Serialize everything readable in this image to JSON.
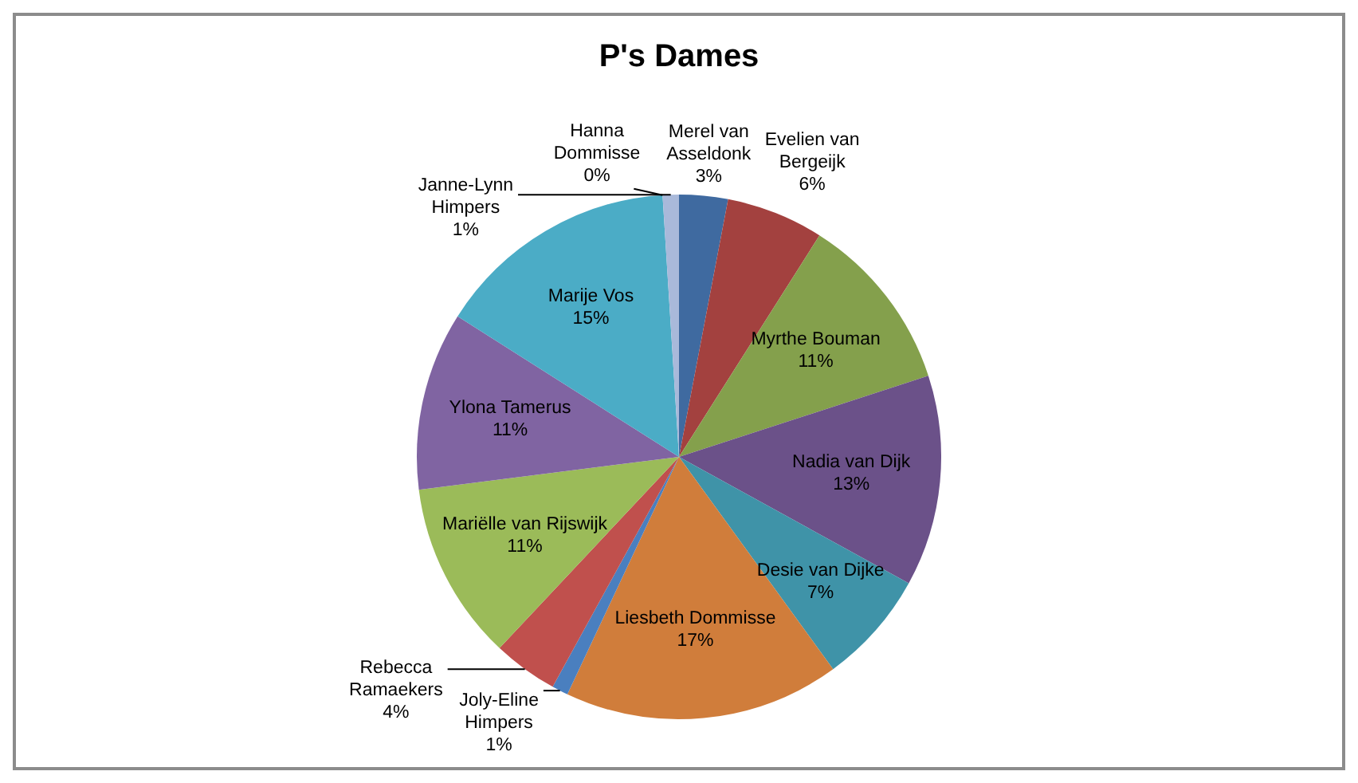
{
  "chart_data": {
    "type": "pie",
    "title": "P's Dames",
    "categories": [
      "Merel van Asseldonk",
      "Evelien van Bergeijk",
      "Myrthe Bouman",
      "Nadia van Dijk",
      "Desie van Dijke",
      "Liesbeth Dommisse",
      "Joly-Eline Himpers",
      "Rebecca Ramaekers",
      "Mariëlle van Rijswijk",
      "Ylona Tamerus",
      "Marije Vos",
      "Hanna Dommisse",
      "Janne-Lynn Himpers"
    ],
    "values": [
      3,
      6,
      11,
      13,
      7,
      17,
      1,
      4,
      11,
      11,
      15,
      0,
      1
    ],
    "value_labels": [
      "3%",
      "6%",
      "11%",
      "13%",
      "7%",
      "17%",
      "1%",
      "4%",
      "11%",
      "11%",
      "15%",
      "0%",
      "1%"
    ],
    "colors": [
      "#3f6aa0",
      "#a3413f",
      "#84a04c",
      "#6b5189",
      "#3f93a8",
      "#d07d3b",
      "#4a7fbf",
      "#c0504d",
      "#9bbb59",
      "#8064a2",
      "#4bacc6",
      "#f79646",
      "#a9b9da"
    ],
    "legend": false
  }
}
